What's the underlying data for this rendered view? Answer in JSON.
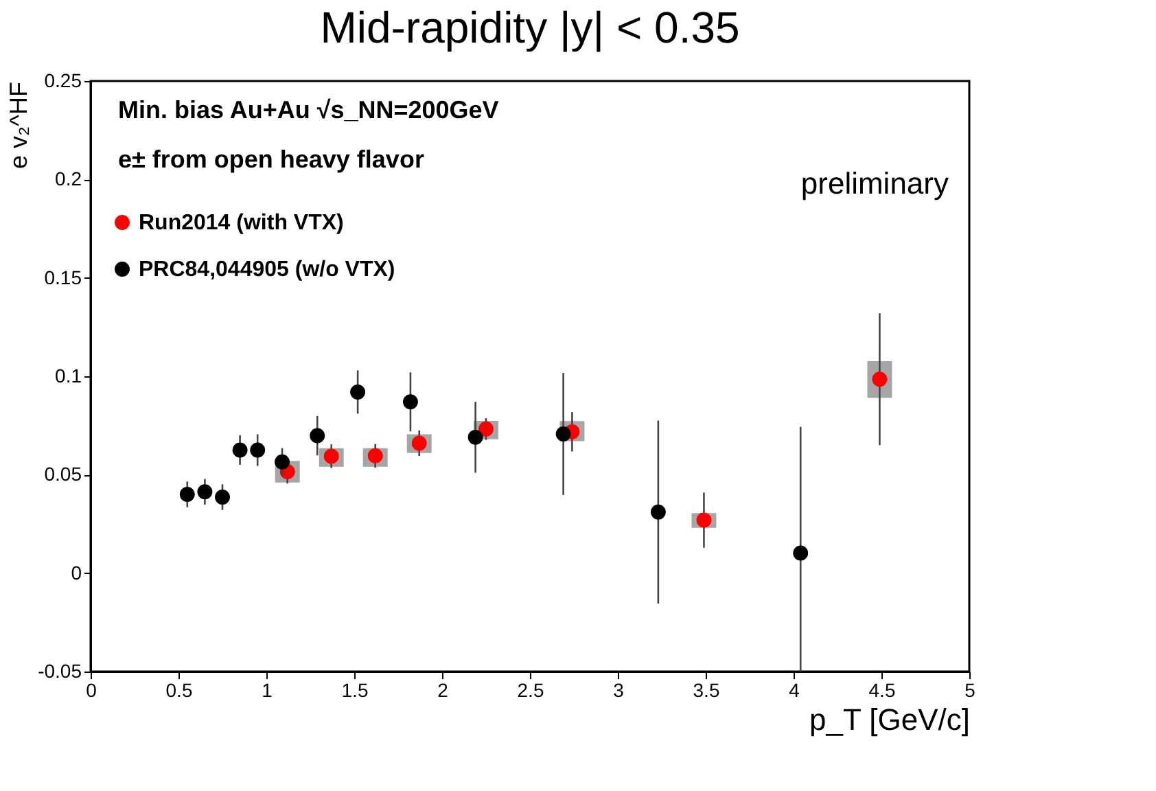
{
  "chart_data": {
    "type": "scatter",
    "title": "Mid-rapidity |y| < 0.35",
    "xlabel": "p_T [GeV/c]",
    "ylabel": "e v₂^HF",
    "annotations": [
      "Min. bias Au+Au √s_NN=200GeV",
      "e± from open heavy flavor",
      "preliminary"
    ],
    "xlim": [
      0,
      5
    ],
    "xticks": [
      0,
      0.5,
      1,
      1.5,
      2,
      2.5,
      3,
      3.5,
      4,
      4.5,
      5
    ],
    "ylim": [
      -0.05,
      0.25
    ],
    "yticks": [
      -0.05,
      0,
      0.05,
      0.1,
      0.15,
      0.2,
      0.25
    ],
    "grid": false,
    "legend": "top left",
    "marker": "circle",
    "series": [
      {
        "type": "bar",
        "color": "#a6a6a6",
        "x": [
          1.12,
          1.37,
          1.62,
          1.87,
          2.25,
          2.74,
          3.49,
          4.49
        ],
        "base": [
          0.046,
          0.054,
          0.054,
          0.061,
          0.068,
          0.067,
          0.023,
          0.089
        ],
        "values": [
          0.011,
          0.0095,
          0.0095,
          0.0095,
          0.0093,
          0.0102,
          0.0075,
          0.0187
        ]
      },
      {
        "name": "Run2014 (with VTX)",
        "color": "#ff0000",
        "x": [
          1.12,
          1.37,
          1.62,
          1.87,
          2.25,
          2.74,
          3.49,
          4.49
        ],
        "values": [
          0.0515,
          0.0594,
          0.0596,
          0.066,
          0.0732,
          0.0718,
          0.0269,
          0.0985
        ],
        "errors": [
          0.006,
          0.006,
          0.006,
          0.0065,
          0.0055,
          0.01,
          0.014,
          0.0335
        ]
      },
      {
        "name": "PRC84,044905 (w/o VTX)",
        "color": "#000000",
        "x": [
          0.55,
          0.65,
          0.75,
          0.85,
          0.95,
          1.09,
          1.29,
          1.52,
          1.82,
          2.19,
          2.69,
          3.23,
          4.04
        ],
        "values": [
          0.04,
          0.0413,
          0.0386,
          0.0625,
          0.0625,
          0.0565,
          0.0698,
          0.092,
          0.087,
          0.069,
          0.0707,
          0.031,
          0.0102
        ],
        "errors": [
          0.0065,
          0.0065,
          0.0065,
          0.0075,
          0.008,
          0.007,
          0.01,
          0.011,
          0.015,
          0.018,
          0.031,
          0.0465,
          [
            -0.05,
            0.0743
          ]
        ]
      }
    ]
  }
}
